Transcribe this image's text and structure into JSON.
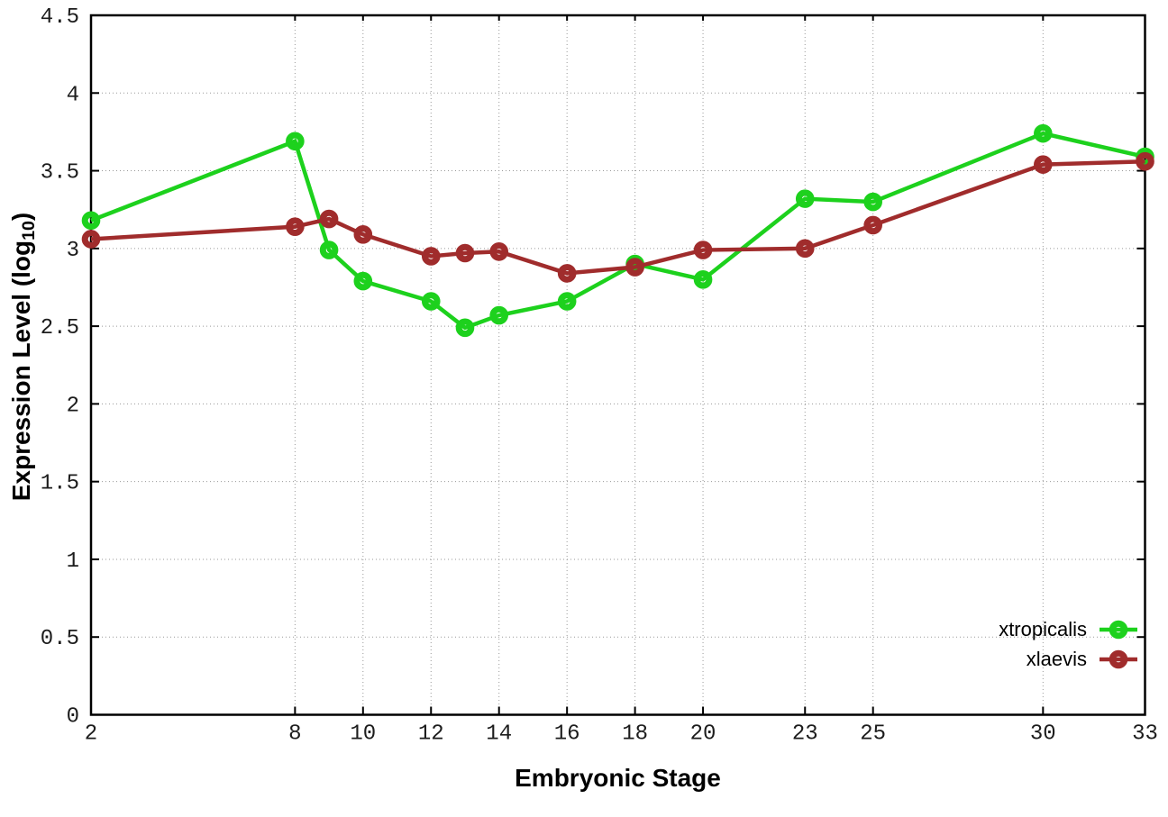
{
  "chart_data": {
    "type": "line",
    "title": "",
    "xlabel": "Embryonic Stage",
    "ylabel": "Expression Level (log10)",
    "ylabel_prefix": "Expression Level (log",
    "ylabel_sub": "10",
    "ylabel_suffix": ")",
    "xlim": [
      2,
      33
    ],
    "ylim": [
      0,
      4.5
    ],
    "x_ticks": [
      2,
      8,
      10,
      12,
      14,
      16,
      18,
      20,
      23,
      25,
      30,
      33
    ],
    "y_ticks": [
      0,
      0.5,
      1,
      1.5,
      2,
      2.5,
      3,
      3.5,
      4,
      4.5
    ],
    "y_tick_labels": [
      "0",
      "0.5",
      "1",
      "1.5",
      "2",
      "2.5",
      "3",
      "3.5",
      "4",
      "4.5"
    ],
    "grid": true,
    "legend_position": "bottom-right",
    "marker": "open-circle",
    "x": [
      2,
      8,
      9,
      10,
      12,
      13,
      14,
      16,
      18,
      20,
      23,
      25,
      30,
      33
    ],
    "series": [
      {
        "name": "xtropicalis",
        "color": "#1dd11d",
        "values": [
          3.18,
          3.69,
          2.99,
          2.79,
          2.66,
          2.49,
          2.57,
          2.66,
          2.9,
          2.8,
          3.32,
          3.3,
          3.74,
          3.59
        ]
      },
      {
        "name": "xlaevis",
        "color": "#a02c2c",
        "values": [
          3.06,
          3.14,
          3.19,
          3.09,
          2.95,
          2.97,
          2.98,
          2.84,
          2.88,
          2.99,
          3.0,
          3.15,
          3.54,
          3.56
        ]
      }
    ]
  }
}
